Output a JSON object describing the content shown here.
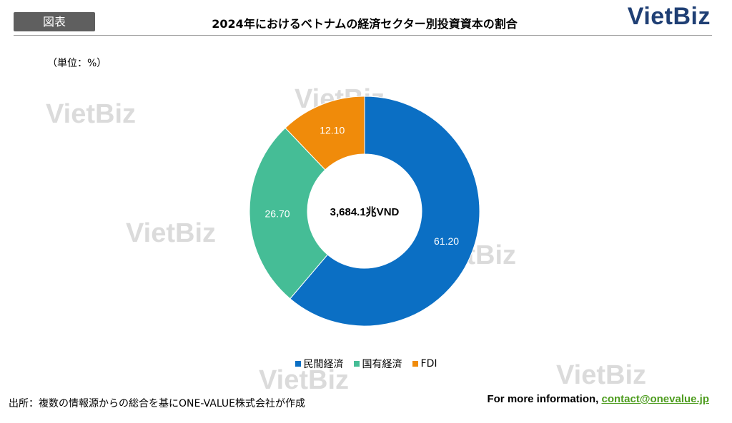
{
  "header": {
    "tag": "図表",
    "title": "2024年におけるベトナムの経済セクター別投資資本の割合",
    "brand": "VietBiz"
  },
  "unit_label": "（単位：%）",
  "watermark_text": "VietBiz",
  "chart_data": {
    "type": "pie",
    "title": "2024年におけるベトナムの経済セクター別投資資本の割合",
    "center_label": "3,684.1兆VND",
    "categories": [
      "民間経済",
      "国有経済",
      "FDI"
    ],
    "values": [
      61.2,
      26.7,
      12.1
    ],
    "value_labels": [
      "61.20",
      "26.70",
      "12.10"
    ],
    "colors": [
      "#0b6fc4",
      "#45bd96",
      "#f08b0a"
    ],
    "legend_position": "bottom",
    "donut": true
  },
  "footer": {
    "source": "出所：複数の情報源からの総合を基にONE-VALUE株式会社が作成",
    "info_prefix": "For more information, ",
    "email": "contact@onevalue.jp"
  }
}
